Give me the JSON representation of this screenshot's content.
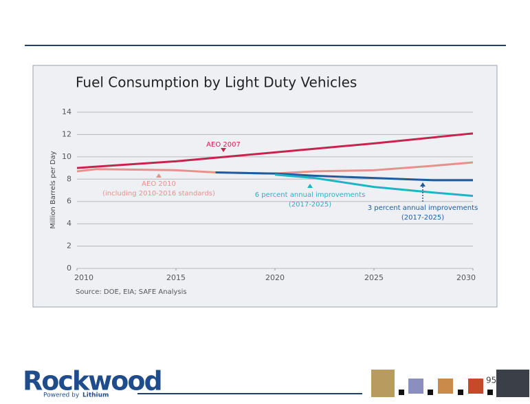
{
  "chart_data": {
    "type": "line",
    "title": "Fuel Consumption by Light Duty Vehicles",
    "y_label": "Million Barrels per Day",
    "source": "Source: DOE, EIA; SAFE Analysis",
    "xlim": [
      2010,
      2030
    ],
    "xticks": [
      2010,
      2015,
      2020,
      2025,
      2030
    ],
    "ylim": [
      0,
      14
    ],
    "yticks": [
      0,
      2,
      4,
      6,
      8,
      10,
      12,
      14
    ],
    "grid": true,
    "series": [
      {
        "name": "AEO 2007",
        "color": "#c8234e",
        "x": [
          2010,
          2015,
          2020,
          2025,
          2030
        ],
        "values": [
          9.0,
          9.6,
          10.4,
          11.2,
          12.1
        ]
      },
      {
        "name": "AEO 2010",
        "color": "#e8908c",
        "x": [
          2010,
          2011,
          2015,
          2017,
          2020,
          2022,
          2025,
          2028,
          2030
        ],
        "values": [
          8.7,
          8.9,
          8.8,
          8.6,
          8.5,
          8.7,
          8.8,
          9.2,
          9.5
        ]
      },
      {
        "name": "3 percent annual improvements",
        "color": "#1f5c9e",
        "x": [
          2017,
          2020,
          2022,
          2025,
          2028,
          2030
        ],
        "values": [
          8.6,
          8.5,
          8.3,
          8.1,
          7.9,
          7.9
        ]
      },
      {
        "name": "6 percent annual improvements",
        "color": "#20b3c6",
        "x": [
          2020,
          2022,
          2025,
          2028,
          2030
        ],
        "values": [
          8.4,
          8.1,
          7.3,
          6.8,
          6.5
        ]
      }
    ],
    "annotations": [
      {
        "lines": [
          "AEO 2007"
        ]
      },
      {
        "lines": [
          "AEO 2010",
          "(including 2010-2016 standards)"
        ]
      },
      {
        "lines": [
          "6 percent annual improvements",
          "(2017-2025)"
        ]
      },
      {
        "lines": [
          "3 percent annual improvements",
          "(2017-2025)"
        ]
      }
    ]
  },
  "footer": {
    "brand": "Rockwood",
    "tagline": "Powered by",
    "tagline_emphasis": "Lithium",
    "page_number": 95
  }
}
